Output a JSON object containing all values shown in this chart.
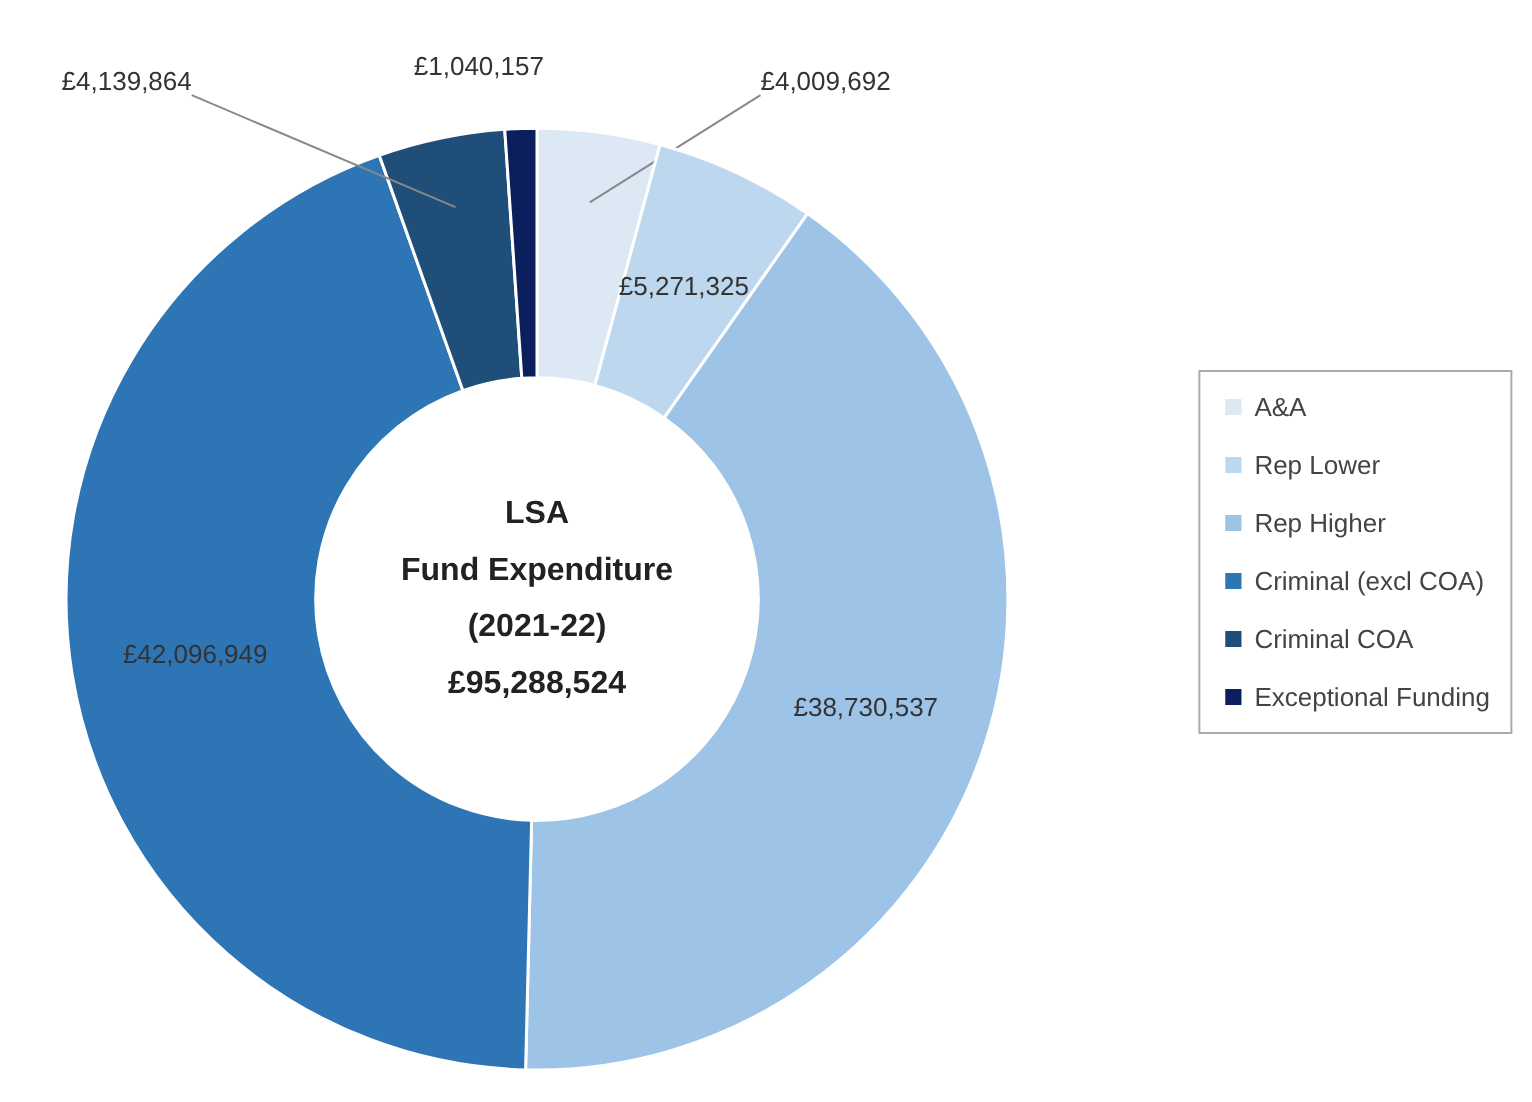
{
  "chart_data": {
    "type": "donut",
    "title": "LSA\nFund Expenditure\n(2021-22)",
    "subtitle": "£95,288,524",
    "categories": [
      "A&A",
      "Rep Lower",
      "Rep Higher",
      "Criminal (excl COA)",
      "Criminal COA",
      "Exceptional Funding"
    ],
    "values": [
      4009692,
      5271325,
      38730537,
      42096949,
      4139864,
      1040157
    ],
    "colors": [
      "#dde8f5",
      "#bdd7ee",
      "#9dc3e6",
      "#2e75b6",
      "#1f4e79",
      "#0b1f5c"
    ],
    "value_labels": [
      "£4,009,692",
      "£5,271,325",
      "£38,730,537",
      "£42,096,949",
      "£4,139,864",
      "£1,040,157"
    ],
    "legend": "right"
  }
}
